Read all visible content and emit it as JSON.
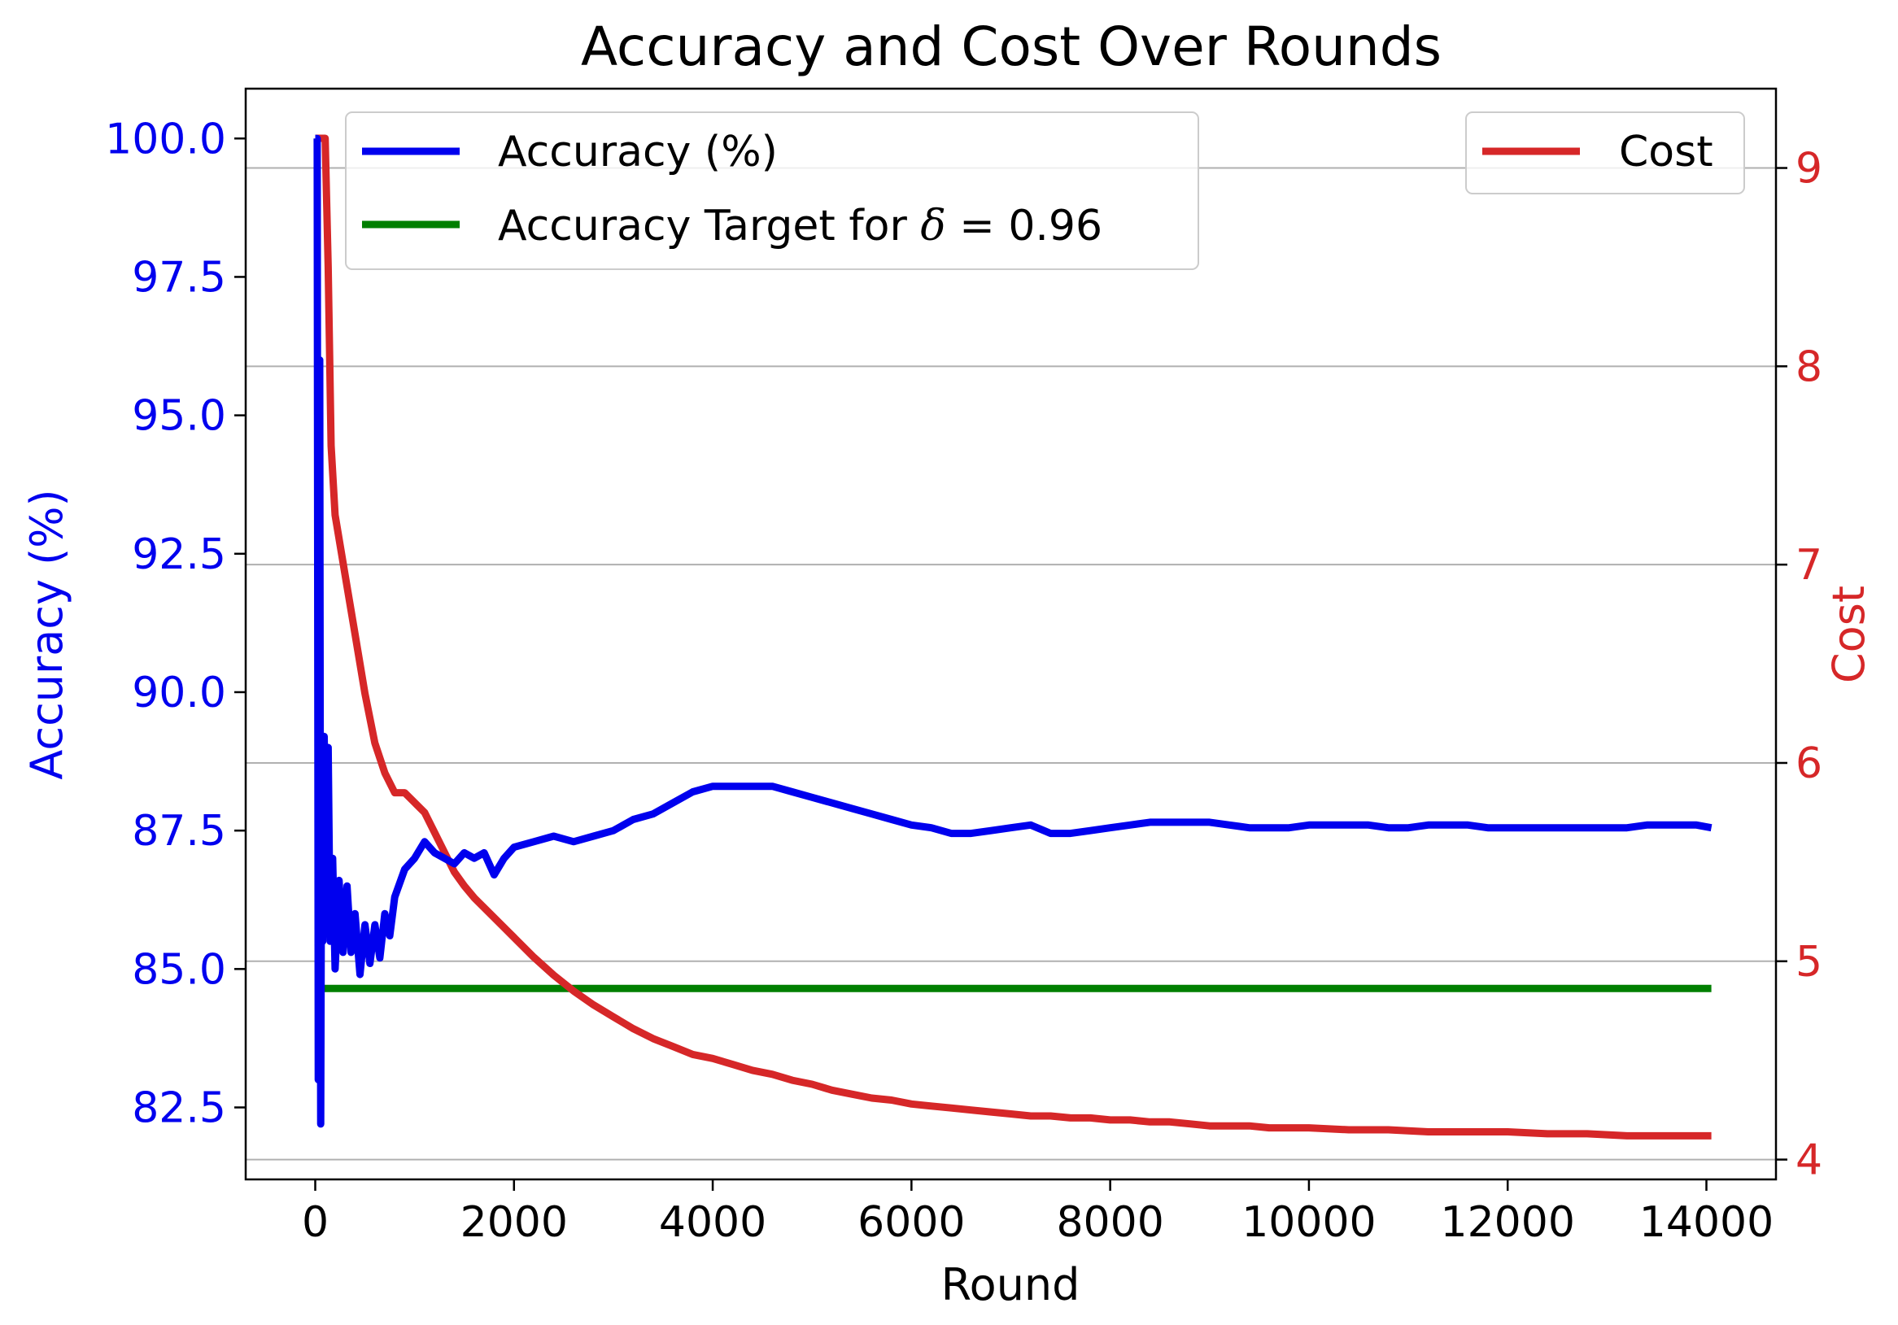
{
  "chart_data": {
    "type": "line",
    "title": "Accuracy and Cost Over Rounds",
    "xlabel": "Round",
    "ylabel_left": "Accuracy (%)",
    "ylabel_right": "Cost",
    "xlim": [
      -700,
      14700
    ],
    "ylim_left": [
      81.2,
      100.9
    ],
    "ylim_right": [
      3.9,
      9.4
    ],
    "x_ticks": [
      "0",
      "2000",
      "4000",
      "6000",
      "8000",
      "10000",
      "12000",
      "14000"
    ],
    "y_left_ticks": [
      "82.5",
      "85.0",
      "87.5",
      "90.0",
      "92.5",
      "95.0",
      "97.5",
      "100.0"
    ],
    "y_right_ticks": [
      "4",
      "5",
      "6",
      "7",
      "8",
      "9"
    ],
    "grid": "horizontal lines at right-axis ticks",
    "legend_left": {
      "placement": "top-left",
      "entries": [
        {
          "label": "Accuracy (%)",
          "color": "#0000ee"
        },
        {
          "label_prefix": "Accuracy Target for ",
          "label_symbol": "δ",
          "label_suffix": " = 0.96",
          "color": "#007f00"
        }
      ]
    },
    "legend_right": {
      "placement": "top-right",
      "entries": [
        {
          "label": "Cost",
          "color": "#d62728"
        }
      ]
    },
    "colors": {
      "accuracy": "#0000ee",
      "target": "#007f00",
      "cost": "#d62728",
      "grid": "#b0b0b0"
    },
    "series": [
      {
        "name": "Accuracy (%)",
        "axis": "left",
        "color": "#0000ee",
        "points": [
          [
            0,
            100
          ],
          [
            20,
            100
          ],
          [
            30,
            83
          ],
          [
            45,
            96
          ],
          [
            55,
            82.2
          ],
          [
            65,
            88.5
          ],
          [
            75,
            85.5
          ],
          [
            90,
            89.2
          ],
          [
            110,
            86.5
          ],
          [
            130,
            89
          ],
          [
            150,
            85.5
          ],
          [
            175,
            87
          ],
          [
            200,
            85
          ],
          [
            240,
            86.6
          ],
          [
            280,
            85.3
          ],
          [
            320,
            86.5
          ],
          [
            360,
            85.3
          ],
          [
            400,
            86
          ],
          [
            450,
            84.9
          ],
          [
            500,
            85.8
          ],
          [
            550,
            85.1
          ],
          [
            600,
            85.8
          ],
          [
            650,
            85.2
          ],
          [
            700,
            86
          ],
          [
            750,
            85.6
          ],
          [
            800,
            86.3
          ],
          [
            900,
            86.8
          ],
          [
            1000,
            87
          ],
          [
            1100,
            87.3
          ],
          [
            1200,
            87.1
          ],
          [
            1300,
            87
          ],
          [
            1400,
            86.9
          ],
          [
            1500,
            87.1
          ],
          [
            1600,
            87
          ],
          [
            1700,
            87.1
          ],
          [
            1800,
            86.7
          ],
          [
            1900,
            87
          ],
          [
            2000,
            87.2
          ],
          [
            2200,
            87.3
          ],
          [
            2400,
            87.4
          ],
          [
            2600,
            87.3
          ],
          [
            2800,
            87.4
          ],
          [
            3000,
            87.5
          ],
          [
            3200,
            87.7
          ],
          [
            3400,
            87.8
          ],
          [
            3600,
            88
          ],
          [
            3800,
            88.2
          ],
          [
            4000,
            88.3
          ],
          [
            4200,
            88.3
          ],
          [
            4400,
            88.3
          ],
          [
            4600,
            88.3
          ],
          [
            4800,
            88.2
          ],
          [
            5000,
            88.1
          ],
          [
            5200,
            88
          ],
          [
            5400,
            87.9
          ],
          [
            5600,
            87.8
          ],
          [
            5800,
            87.7
          ],
          [
            6000,
            87.6
          ],
          [
            6200,
            87.55
          ],
          [
            6400,
            87.45
          ],
          [
            6600,
            87.45
          ],
          [
            6800,
            87.5
          ],
          [
            7000,
            87.55
          ],
          [
            7200,
            87.6
          ],
          [
            7400,
            87.45
          ],
          [
            7600,
            87.45
          ],
          [
            7800,
            87.5
          ],
          [
            8000,
            87.55
          ],
          [
            8200,
            87.6
          ],
          [
            8400,
            87.65
          ],
          [
            8600,
            87.65
          ],
          [
            8800,
            87.65
          ],
          [
            9000,
            87.65
          ],
          [
            9200,
            87.6
          ],
          [
            9400,
            87.55
          ],
          [
            9600,
            87.55
          ],
          [
            9800,
            87.55
          ],
          [
            10000,
            87.6
          ],
          [
            10200,
            87.6
          ],
          [
            10400,
            87.6
          ],
          [
            10600,
            87.6
          ],
          [
            10800,
            87.55
          ],
          [
            11000,
            87.55
          ],
          [
            11200,
            87.6
          ],
          [
            11400,
            87.6
          ],
          [
            11600,
            87.6
          ],
          [
            11800,
            87.55
          ],
          [
            12000,
            87.55
          ],
          [
            12200,
            87.55
          ],
          [
            12400,
            87.55
          ],
          [
            12600,
            87.55
          ],
          [
            12800,
            87.55
          ],
          [
            13000,
            87.55
          ],
          [
            13200,
            87.55
          ],
          [
            13400,
            87.6
          ],
          [
            13600,
            87.6
          ],
          [
            13800,
            87.6
          ],
          [
            13900,
            87.6
          ],
          [
            14050,
            87.55
          ]
        ]
      },
      {
        "name": "Accuracy Target for δ = 0.96",
        "axis": "left",
        "color": "#007f00",
        "points": [
          [
            50,
            84.65
          ],
          [
            14050,
            84.65
          ]
        ]
      },
      {
        "name": "Cost",
        "axis": "right",
        "color": "#d62728",
        "points": [
          [
            0,
            9.15
          ],
          [
            100,
            9.15
          ],
          [
            130,
            8.5
          ],
          [
            160,
            7.6
          ],
          [
            200,
            7.25
          ],
          [
            300,
            6.95
          ],
          [
            400,
            6.65
          ],
          [
            500,
            6.35
          ],
          [
            600,
            6.1
          ],
          [
            700,
            5.95
          ],
          [
            800,
            5.85
          ],
          [
            900,
            5.85
          ],
          [
            1000,
            5.8
          ],
          [
            1100,
            5.75
          ],
          [
            1200,
            5.65
          ],
          [
            1300,
            5.55
          ],
          [
            1400,
            5.45
          ],
          [
            1500,
            5.38
          ],
          [
            1600,
            5.32
          ],
          [
            1800,
            5.22
          ],
          [
            2000,
            5.12
          ],
          [
            2200,
            5.02
          ],
          [
            2400,
            4.93
          ],
          [
            2600,
            4.85
          ],
          [
            2800,
            4.78
          ],
          [
            3000,
            4.72
          ],
          [
            3200,
            4.66
          ],
          [
            3400,
            4.61
          ],
          [
            3600,
            4.57
          ],
          [
            3800,
            4.53
          ],
          [
            4000,
            4.51
          ],
          [
            4200,
            4.48
          ],
          [
            4400,
            4.45
          ],
          [
            4600,
            4.43
          ],
          [
            4800,
            4.4
          ],
          [
            5000,
            4.38
          ],
          [
            5200,
            4.35
          ],
          [
            5400,
            4.33
          ],
          [
            5600,
            4.31
          ],
          [
            5800,
            4.3
          ],
          [
            6000,
            4.28
          ],
          [
            6200,
            4.27
          ],
          [
            6400,
            4.26
          ],
          [
            6600,
            4.25
          ],
          [
            6800,
            4.24
          ],
          [
            7000,
            4.23
          ],
          [
            7200,
            4.22
          ],
          [
            7400,
            4.22
          ],
          [
            7600,
            4.21
          ],
          [
            7800,
            4.21
          ],
          [
            8000,
            4.2
          ],
          [
            8200,
            4.2
          ],
          [
            8400,
            4.19
          ],
          [
            8600,
            4.19
          ],
          [
            8800,
            4.18
          ],
          [
            9000,
            4.17
          ],
          [
            9200,
            4.17
          ],
          [
            9400,
            4.17
          ],
          [
            9600,
            4.16
          ],
          [
            9800,
            4.16
          ],
          [
            10000,
            4.16
          ],
          [
            10400,
            4.15
          ],
          [
            10800,
            4.15
          ],
          [
            11200,
            4.14
          ],
          [
            11600,
            4.14
          ],
          [
            12000,
            4.14
          ],
          [
            12400,
            4.13
          ],
          [
            12800,
            4.13
          ],
          [
            13200,
            4.12
          ],
          [
            13600,
            4.12
          ],
          [
            14050,
            4.12
          ]
        ]
      }
    ]
  }
}
